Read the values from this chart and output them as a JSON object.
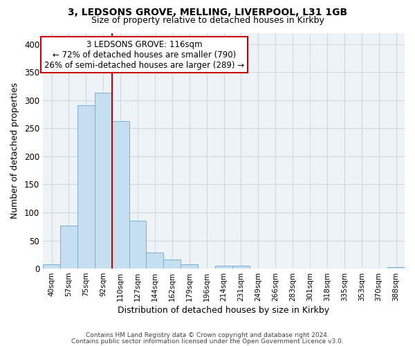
{
  "title1": "3, LEDSONS GROVE, MELLING, LIVERPOOL, L31 1GB",
  "title2": "Size of property relative to detached houses in Kirkby",
  "xlabel": "Distribution of detached houses by size in Kirkby",
  "ylabel": "Number of detached properties",
  "bin_labels": [
    "40sqm",
    "57sqm",
    "75sqm",
    "92sqm",
    "110sqm",
    "127sqm",
    "144sqm",
    "162sqm",
    "179sqm",
    "196sqm",
    "214sqm",
    "231sqm",
    "249sqm",
    "266sqm",
    "283sqm",
    "301sqm",
    "318sqm",
    "335sqm",
    "353sqm",
    "370sqm",
    "388sqm"
  ],
  "bar_heights": [
    8,
    76,
    291,
    313,
    263,
    85,
    28,
    16,
    8,
    0,
    5,
    5,
    0,
    0,
    0,
    0,
    0,
    0,
    0,
    0,
    3
  ],
  "bar_color": "#c6dff0",
  "bar_edge_color": "#7ab0d4",
  "vline_bar_index": 4,
  "vline_color": "#cc0000",
  "ylim": [
    0,
    420
  ],
  "yticks": [
    0,
    50,
    100,
    150,
    200,
    250,
    300,
    350,
    400
  ],
  "annotation_line1": "3 LEDSONS GROVE: 116sqm",
  "annotation_line2": "← 72% of detached houses are smaller (790)",
  "annotation_line3": "26% of semi-detached houses are larger (289) →",
  "annotation_box_color": "#ffffff",
  "annotation_box_edge": "#cc0000",
  "footer1": "Contains HM Land Registry data © Crown copyright and database right 2024.",
  "footer2": "Contains public sector information licensed under the Open Government Licence v3.0.",
  "grid_color": "#d0d8e0",
  "bg_color": "#eef3f8"
}
